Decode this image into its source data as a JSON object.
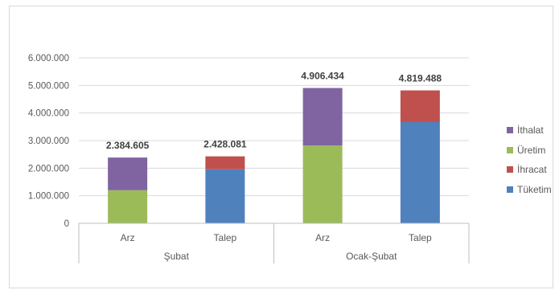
{
  "chart_data": {
    "type": "bar",
    "stacked": true,
    "categories": [
      "Arz",
      "Talep",
      "Arz",
      "Talep"
    ],
    "groups": [
      {
        "label": "Şubat",
        "categories": [
          "Arz",
          "Talep"
        ]
      },
      {
        "label": "Ocak-Şubat",
        "categories": [
          "Arz",
          "Talep"
        ]
      }
    ],
    "series": [
      {
        "name": "Tüketim",
        "color": "#4f81bd",
        "values": [
          0,
          1960000,
          0,
          3670000
        ]
      },
      {
        "name": "İhracat",
        "color": "#c0504d",
        "values": [
          0,
          468081,
          0,
          1149488
        ]
      },
      {
        "name": "Üretim",
        "color": "#9bbb59",
        "values": [
          1200000,
          0,
          2820000,
          0
        ]
      },
      {
        "name": "İthalat",
        "color": "#8064a2",
        "values": [
          1184605,
          0,
          2086434,
          0
        ]
      }
    ],
    "totals": [
      "2.384.605",
      "2.428.081",
      "4.906.434",
      "4.819.488"
    ],
    "yticks": [
      "0",
      "1.000.000",
      "2.000.000",
      "3.000.000",
      "4.000.000",
      "5.000.000",
      "6.000.000"
    ],
    "ylim": [
      0,
      6000000
    ],
    "grid": true,
    "legend_position": "right",
    "legend": [
      "İthalat",
      "Üretim",
      "İhracat",
      "Tüketim"
    ],
    "title": "",
    "xlabel": "",
    "ylabel": ""
  }
}
